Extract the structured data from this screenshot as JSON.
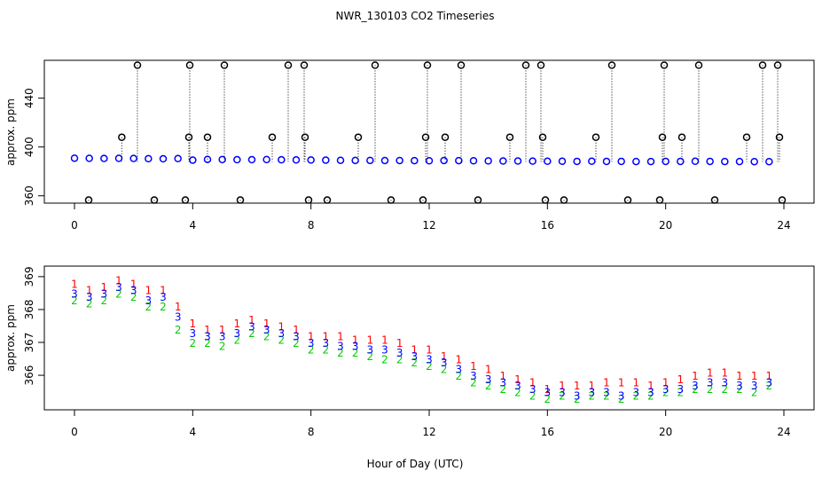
{
  "chart_data": [
    {
      "type": "scatter",
      "title": "NWR_130103  CO2 Timeseries",
      "ylabel": "approx. ppm",
      "xlim": [
        -1.02,
        25.02
      ],
      "ylim": [
        354,
        471
      ],
      "xticks": [
        0,
        4,
        8,
        12,
        16,
        20,
        24
      ],
      "yticks": [
        360,
        400,
        440
      ],
      "series": [
        {
          "color": "#0000ff",
          "marker": "circle",
          "x": [
            0,
            0.5,
            1,
            1.5,
            2,
            2.5,
            3,
            3.5,
            4,
            4.5,
            5,
            5.5,
            6,
            6.5,
            7,
            7.5,
            8,
            8.5,
            9,
            9.5,
            10,
            10.5,
            11,
            11.5,
            12,
            12.5,
            13,
            13.5,
            14,
            14.5,
            15,
            15.5,
            16,
            16.5,
            17,
            17.5,
            18,
            18.5,
            19,
            19.5,
            20,
            20.5,
            21,
            21.5,
            22,
            22.5,
            23,
            23.5
          ],
          "values": [
            390.8,
            390.7,
            390.6,
            390.7,
            390.6,
            390.4,
            390.3,
            390.5,
            389.2,
            389.8,
            389.7,
            389.6,
            389.6,
            389.7,
            389.5,
            389.4,
            389.3,
            389.2,
            389.1,
            389.0,
            389.0,
            388.9,
            388.9,
            388.8,
            388.7,
            388.9,
            388.8,
            388.7,
            388.6,
            388.5,
            388.5,
            388.4,
            388.3,
            388.3,
            388.2,
            388.3,
            388.2,
            388.2,
            388.1,
            388.1,
            388.2,
            388.2,
            388.3,
            388.2,
            388.1,
            388.1,
            388.0,
            388.0
          ]
        },
        {
          "color": "#000000",
          "marker": "spike",
          "x": [
            0.48,
            1.6,
            2.13,
            2.7,
            3.75,
            3.87,
            3.9,
            4.5,
            5.07,
            5.61,
            6.69,
            7.23,
            7.77,
            7.8,
            7.92,
            8.55,
            9.6,
            10.17,
            10.71,
            11.79,
            11.88,
            11.94,
            12.54,
            13.08,
            13.65,
            14.73,
            15.27,
            15.78,
            15.84,
            15.93,
            16.56,
            17.64,
            18.18,
            18.72,
            19.8,
            19.89,
            19.95,
            20.55,
            21.12,
            21.66,
            22.74,
            23.28,
            23.79,
            23.85,
            23.94
          ],
          "values": [
            356.5,
            408,
            467,
            356.5,
            356.5,
            408,
            467,
            408,
            467,
            356.5,
            408,
            467,
            467,
            408,
            356.5,
            356.5,
            408,
            467,
            356.5,
            356.5,
            408,
            467,
            408,
            467,
            356.5,
            408,
            467,
            467,
            408,
            356.5,
            356.5,
            408,
            467,
            356.5,
            356.5,
            408,
            467,
            408,
            467,
            356.5,
            408,
            467,
            467,
            408,
            356.5
          ]
        }
      ]
    },
    {
      "type": "symbols",
      "ylabel": "approx. ppm",
      "xlabel": "Hour of Day (UTC)",
      "xlim": [
        -1.02,
        25.02
      ],
      "ylim": [
        364.95,
        369.32
      ],
      "xticks": [
        0,
        4,
        8,
        12,
        16,
        20,
        24
      ],
      "yticks": [
        366,
        367,
        368,
        369
      ],
      "x": [
        0,
        0.5,
        1,
        1.5,
        2,
        2.5,
        3,
        3.5,
        4,
        4.5,
        5,
        5.5,
        6,
        6.5,
        7,
        7.5,
        8,
        8.5,
        9,
        9.5,
        10,
        10.5,
        11,
        11.5,
        12,
        12.5,
        13,
        13.5,
        14,
        14.5,
        15,
        15.5,
        16,
        16.5,
        17,
        17.5,
        18,
        18.5,
        19,
        19.5,
        20,
        20.5,
        21,
        21.5,
        22,
        22.5,
        23,
        23.5
      ],
      "series": [
        {
          "symbol": "1",
          "color": "#ff0000",
          "values": [
            368.8,
            368.6,
            368.7,
            368.9,
            368.8,
            368.6,
            368.6,
            368.1,
            367.6,
            367.4,
            367.4,
            367.6,
            367.7,
            367.6,
            367.5,
            367.4,
            367.2,
            367.2,
            367.2,
            367.1,
            367.1,
            367.1,
            367.0,
            366.8,
            366.8,
            366.6,
            366.5,
            366.3,
            366.2,
            366.0,
            365.9,
            365.8,
            365.6,
            365.7,
            365.7,
            365.7,
            365.8,
            365.8,
            365.8,
            365.7,
            365.8,
            365.9,
            366.0,
            366.1,
            366.1,
            366.0,
            366.0,
            366.0
          ]
        },
        {
          "symbol": "2",
          "color": "#00cc00",
          "values": [
            368.3,
            368.2,
            368.3,
            368.5,
            368.4,
            368.1,
            368.1,
            367.4,
            367.0,
            367.0,
            366.9,
            367.1,
            367.3,
            367.2,
            367.1,
            367.0,
            366.8,
            366.8,
            366.7,
            366.7,
            366.6,
            366.5,
            366.5,
            366.4,
            366.3,
            366.2,
            366.0,
            365.8,
            365.7,
            365.6,
            365.5,
            365.4,
            365.3,
            365.4,
            365.3,
            365.4,
            365.4,
            365.3,
            365.4,
            365.4,
            365.5,
            365.5,
            365.6,
            365.6,
            365.6,
            365.6,
            365.5,
            365.7
          ]
        },
        {
          "symbol": "3",
          "color": "#0000ff",
          "values": [
            368.5,
            368.4,
            368.5,
            368.7,
            368.6,
            368.3,
            368.4,
            367.8,
            367.3,
            367.2,
            367.2,
            367.3,
            367.5,
            367.4,
            367.3,
            367.2,
            367.0,
            367.0,
            366.9,
            366.9,
            366.8,
            366.8,
            366.7,
            366.6,
            366.5,
            366.4,
            366.2,
            366.0,
            365.9,
            365.8,
            365.7,
            365.6,
            365.5,
            365.5,
            365.4,
            365.5,
            365.5,
            365.4,
            365.5,
            365.5,
            365.6,
            365.6,
            365.7,
            365.8,
            365.8,
            365.7,
            365.7,
            365.8
          ]
        }
      ]
    }
  ]
}
